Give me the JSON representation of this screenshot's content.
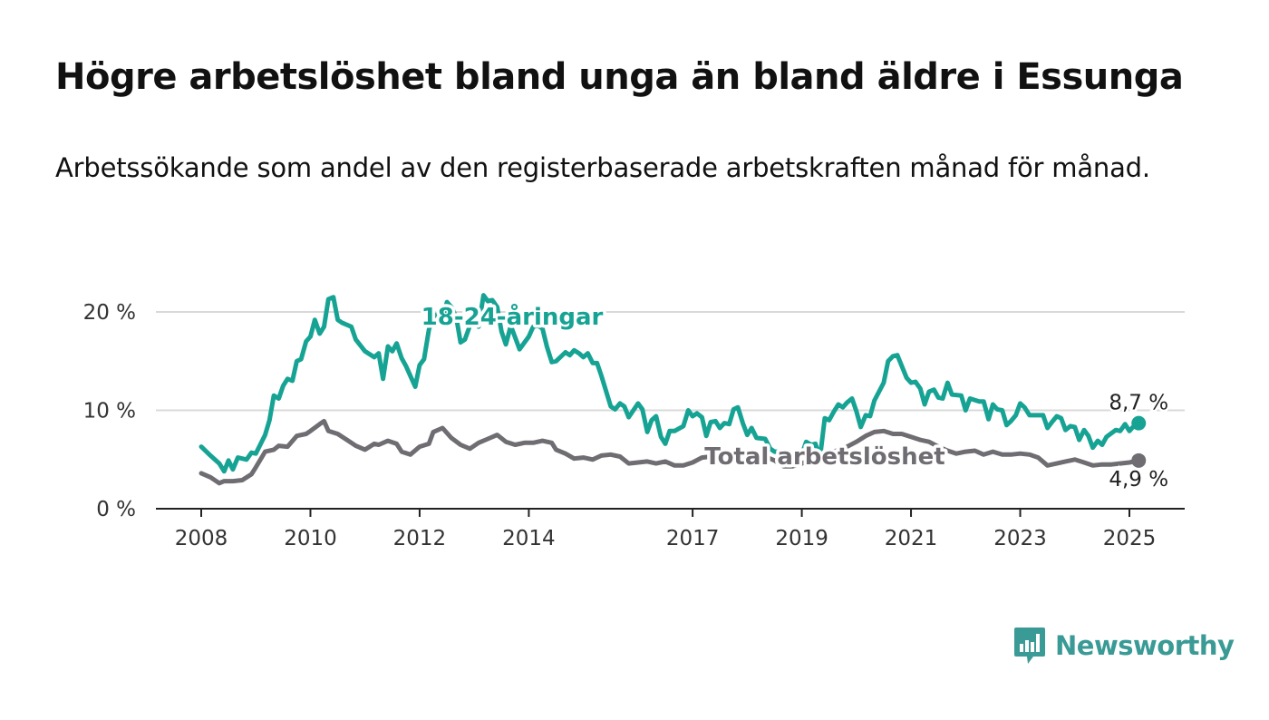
{
  "title": "Högre arbetslöshet bland unga än bland äldre i Essunga",
  "subtitle": "Arbetssökande som andel av den registerbaserade arbetskraften månad för månad.",
  "brand": {
    "name": "Newsworthy",
    "color": "#3a9a95",
    "icon": "bar-chart-speech-bubble-icon"
  },
  "chart_data": {
    "type": "line",
    "x_range": [
      "2008-01",
      "2025-03"
    ],
    "xticks": [
      {
        "value": 2008,
        "label": "2008"
      },
      {
        "value": 2010,
        "label": "2010"
      },
      {
        "value": 2012,
        "label": "2012"
      },
      {
        "value": 2014,
        "label": "2014"
      },
      {
        "value": 2017,
        "label": "2017"
      },
      {
        "value": 2019,
        "label": "2019"
      },
      {
        "value": 2021,
        "label": "2021"
      },
      {
        "value": 2023,
        "label": "2023"
      },
      {
        "value": 2025,
        "label": "2025"
      }
    ],
    "yticks": [
      {
        "value": 0,
        "label": "0 %"
      },
      {
        "value": 10,
        "label": "10 %"
      },
      {
        "value": 20,
        "label": "20 %"
      }
    ],
    "ylim": [
      0,
      22
    ],
    "grid": true,
    "series": [
      {
        "name": "18-24-åringar",
        "color": "#16a394",
        "end_label": "8,7 %",
        "points": [
          [
            2008.0,
            6.3
          ],
          [
            2008.17,
            5.4
          ],
          [
            2008.33,
            4.6
          ],
          [
            2008.42,
            3.8
          ],
          [
            2008.5,
            4.9
          ],
          [
            2008.58,
            4.0
          ],
          [
            2008.67,
            5.2
          ],
          [
            2008.83,
            5.0
          ],
          [
            2008.92,
            5.7
          ],
          [
            2009.0,
            5.6
          ],
          [
            2009.17,
            7.5
          ],
          [
            2009.25,
            9.0
          ],
          [
            2009.33,
            11.5
          ],
          [
            2009.42,
            11.2
          ],
          [
            2009.5,
            12.5
          ],
          [
            2009.58,
            13.2
          ],
          [
            2009.67,
            13.0
          ],
          [
            2009.75,
            15.0
          ],
          [
            2009.83,
            15.2
          ],
          [
            2009.92,
            17.0
          ],
          [
            2010.0,
            17.5
          ],
          [
            2010.08,
            19.2
          ],
          [
            2010.17,
            17.8
          ],
          [
            2010.25,
            18.5
          ],
          [
            2010.33,
            21.3
          ],
          [
            2010.42,
            21.5
          ],
          [
            2010.5,
            19.2
          ],
          [
            2010.58,
            18.9
          ],
          [
            2010.75,
            18.5
          ],
          [
            2010.83,
            17.2
          ],
          [
            2011.0,
            16.0
          ],
          [
            2011.17,
            15.4
          ],
          [
            2011.25,
            15.8
          ],
          [
            2011.33,
            13.2
          ],
          [
            2011.42,
            16.5
          ],
          [
            2011.5,
            16.0
          ],
          [
            2011.58,
            16.8
          ],
          [
            2011.67,
            15.3
          ],
          [
            2011.75,
            14.5
          ],
          [
            2011.92,
            12.4
          ],
          [
            2012.0,
            14.6
          ],
          [
            2012.08,
            15.2
          ],
          [
            2012.17,
            18.2
          ],
          [
            2012.25,
            19.5
          ],
          [
            2012.33,
            19.8
          ],
          [
            2012.42,
            19.3
          ],
          [
            2012.5,
            21.0
          ],
          [
            2012.58,
            20.5
          ],
          [
            2012.67,
            19.5
          ],
          [
            2012.75,
            16.9
          ],
          [
            2012.83,
            17.2
          ],
          [
            2012.92,
            18.6
          ],
          [
            2013.0,
            19.2
          ],
          [
            2013.08,
            18.5
          ],
          [
            2013.17,
            21.7
          ],
          [
            2013.25,
            21.1
          ],
          [
            2013.33,
            21.2
          ],
          [
            2013.42,
            20.5
          ],
          [
            2013.5,
            18.0
          ],
          [
            2013.58,
            16.7
          ],
          [
            2013.67,
            18.6
          ],
          [
            2013.75,
            17.4
          ],
          [
            2013.83,
            16.2
          ],
          [
            2014.0,
            17.5
          ],
          [
            2014.08,
            18.5
          ],
          [
            2014.17,
            18.6
          ],
          [
            2014.25,
            18.3
          ],
          [
            2014.33,
            16.5
          ],
          [
            2014.42,
            14.9
          ],
          [
            2014.5,
            15.0
          ],
          [
            2014.67,
            15.9
          ],
          [
            2014.75,
            15.6
          ],
          [
            2014.83,
            16.1
          ],
          [
            2014.92,
            15.8
          ],
          [
            2015.0,
            15.4
          ],
          [
            2015.08,
            15.8
          ],
          [
            2015.17,
            14.8
          ],
          [
            2015.25,
            14.8
          ],
          [
            2015.33,
            13.5
          ],
          [
            2015.5,
            10.4
          ],
          [
            2015.58,
            10.1
          ],
          [
            2015.67,
            10.7
          ],
          [
            2015.75,
            10.4
          ],
          [
            2015.83,
            9.3
          ],
          [
            2016.0,
            10.7
          ],
          [
            2016.08,
            10.1
          ],
          [
            2016.17,
            7.8
          ],
          [
            2016.25,
            9.0
          ],
          [
            2016.33,
            9.4
          ],
          [
            2016.42,
            7.3
          ],
          [
            2016.5,
            6.6
          ],
          [
            2016.58,
            7.9
          ],
          [
            2016.67,
            7.9
          ],
          [
            2016.83,
            8.4
          ],
          [
            2016.92,
            10.0
          ],
          [
            2017.0,
            9.4
          ],
          [
            2017.08,
            9.7
          ],
          [
            2017.17,
            9.3
          ],
          [
            2017.25,
            7.4
          ],
          [
            2017.33,
            8.8
          ],
          [
            2017.42,
            8.9
          ],
          [
            2017.5,
            8.2
          ],
          [
            2017.58,
            8.7
          ],
          [
            2017.67,
            8.6
          ],
          [
            2017.75,
            10.1
          ],
          [
            2017.83,
            10.3
          ],
          [
            2017.92,
            8.7
          ],
          [
            2018.0,
            7.5
          ],
          [
            2018.08,
            8.2
          ],
          [
            2018.17,
            7.2
          ],
          [
            2018.33,
            7.1
          ],
          [
            2018.42,
            6.1
          ],
          [
            2018.5,
            5.8
          ],
          [
            2018.58,
            5.8
          ],
          [
            2018.67,
            4.5
          ],
          [
            2018.75,
            4.5
          ],
          [
            2018.83,
            4.8
          ],
          [
            2019.0,
            5.5
          ],
          [
            2019.08,
            6.8
          ],
          [
            2019.17,
            6.5
          ],
          [
            2019.25,
            6.6
          ],
          [
            2019.33,
            5.1
          ],
          [
            2019.42,
            9.2
          ],
          [
            2019.5,
            9.0
          ],
          [
            2019.58,
            9.8
          ],
          [
            2019.67,
            10.6
          ],
          [
            2019.75,
            10.3
          ],
          [
            2019.83,
            10.8
          ],
          [
            2019.92,
            11.2
          ],
          [
            2020.0,
            9.9
          ],
          [
            2020.08,
            8.3
          ],
          [
            2020.17,
            9.5
          ],
          [
            2020.25,
            9.4
          ],
          [
            2020.33,
            11.0
          ],
          [
            2020.5,
            12.8
          ],
          [
            2020.58,
            15.0
          ],
          [
            2020.67,
            15.5
          ],
          [
            2020.75,
            15.6
          ],
          [
            2020.92,
            13.3
          ],
          [
            2021.0,
            12.8
          ],
          [
            2021.08,
            12.9
          ],
          [
            2021.17,
            12.2
          ],
          [
            2021.25,
            10.6
          ],
          [
            2021.33,
            11.9
          ],
          [
            2021.42,
            12.1
          ],
          [
            2021.5,
            11.3
          ],
          [
            2021.58,
            11.2
          ],
          [
            2021.67,
            12.8
          ],
          [
            2021.75,
            11.6
          ],
          [
            2021.92,
            11.5
          ],
          [
            2022.0,
            10.0
          ],
          [
            2022.08,
            11.2
          ],
          [
            2022.25,
            10.9
          ],
          [
            2022.33,
            10.9
          ],
          [
            2022.42,
            9.1
          ],
          [
            2022.5,
            10.6
          ],
          [
            2022.58,
            10.1
          ],
          [
            2022.67,
            10.0
          ],
          [
            2022.75,
            8.5
          ],
          [
            2022.83,
            8.9
          ],
          [
            2022.92,
            9.5
          ],
          [
            2023.0,
            10.7
          ],
          [
            2023.08,
            10.3
          ],
          [
            2023.17,
            9.5
          ],
          [
            2023.25,
            9.5
          ],
          [
            2023.42,
            9.5
          ],
          [
            2023.5,
            8.2
          ],
          [
            2023.58,
            8.8
          ],
          [
            2023.67,
            9.4
          ],
          [
            2023.75,
            9.2
          ],
          [
            2023.83,
            8.0
          ],
          [
            2023.92,
            8.4
          ],
          [
            2024.0,
            8.3
          ],
          [
            2024.08,
            7.0
          ],
          [
            2024.17,
            8.0
          ],
          [
            2024.25,
            7.4
          ],
          [
            2024.33,
            6.2
          ],
          [
            2024.42,
            6.9
          ],
          [
            2024.5,
            6.5
          ],
          [
            2024.58,
            7.3
          ],
          [
            2024.75,
            8.0
          ],
          [
            2024.83,
            7.9
          ],
          [
            2024.92,
            8.6
          ],
          [
            2025.0,
            7.9
          ],
          [
            2025.08,
            8.4
          ],
          [
            2025.17,
            8.7
          ]
        ]
      },
      {
        "name": "Total arbetslöshet",
        "color": "#6f6d72",
        "end_label": "4,9 %",
        "points": [
          [
            2008.0,
            3.6
          ],
          [
            2008.17,
            3.2
          ],
          [
            2008.33,
            2.6
          ],
          [
            2008.42,
            2.8
          ],
          [
            2008.58,
            2.8
          ],
          [
            2008.75,
            2.9
          ],
          [
            2008.92,
            3.5
          ],
          [
            2009.0,
            4.2
          ],
          [
            2009.17,
            5.8
          ],
          [
            2009.33,
            6.0
          ],
          [
            2009.42,
            6.4
          ],
          [
            2009.58,
            6.3
          ],
          [
            2009.75,
            7.4
          ],
          [
            2009.92,
            7.6
          ],
          [
            2010.0,
            7.9
          ],
          [
            2010.17,
            8.6
          ],
          [
            2010.25,
            8.9
          ],
          [
            2010.33,
            7.9
          ],
          [
            2010.5,
            7.6
          ],
          [
            2010.67,
            7.0
          ],
          [
            2010.83,
            6.4
          ],
          [
            2011.0,
            6.0
          ],
          [
            2011.17,
            6.6
          ],
          [
            2011.25,
            6.5
          ],
          [
            2011.42,
            6.9
          ],
          [
            2011.58,
            6.6
          ],
          [
            2011.67,
            5.8
          ],
          [
            2011.83,
            5.5
          ],
          [
            2012.0,
            6.3
          ],
          [
            2012.17,
            6.6
          ],
          [
            2012.25,
            7.8
          ],
          [
            2012.42,
            8.2
          ],
          [
            2012.58,
            7.2
          ],
          [
            2012.75,
            6.5
          ],
          [
            2012.92,
            6.1
          ],
          [
            2013.08,
            6.7
          ],
          [
            2013.25,
            7.1
          ],
          [
            2013.42,
            7.5
          ],
          [
            2013.58,
            6.8
          ],
          [
            2013.75,
            6.5
          ],
          [
            2013.92,
            6.7
          ],
          [
            2014.08,
            6.7
          ],
          [
            2014.25,
            6.9
          ],
          [
            2014.42,
            6.7
          ],
          [
            2014.5,
            6.0
          ],
          [
            2014.67,
            5.6
          ],
          [
            2014.83,
            5.1
          ],
          [
            2015.0,
            5.2
          ],
          [
            2015.17,
            5.0
          ],
          [
            2015.33,
            5.4
          ],
          [
            2015.5,
            5.5
          ],
          [
            2015.67,
            5.3
          ],
          [
            2015.83,
            4.6
          ],
          [
            2016.0,
            4.7
          ],
          [
            2016.17,
            4.8
          ],
          [
            2016.33,
            4.6
          ],
          [
            2016.5,
            4.8
          ],
          [
            2016.67,
            4.4
          ],
          [
            2016.83,
            4.4
          ],
          [
            2017.0,
            4.7
          ],
          [
            2017.17,
            5.2
          ],
          [
            2017.33,
            5.3
          ],
          [
            2017.5,
            5.0
          ],
          [
            2017.67,
            5.0
          ],
          [
            2017.83,
            5.2
          ],
          [
            2018.0,
            5.3
          ],
          [
            2018.17,
            5.1
          ],
          [
            2018.33,
            5.3
          ],
          [
            2018.5,
            4.9
          ],
          [
            2018.67,
            4.3
          ],
          [
            2018.83,
            4.3
          ],
          [
            2019.0,
            4.6
          ],
          [
            2019.17,
            5.0
          ],
          [
            2019.33,
            5.4
          ],
          [
            2019.5,
            5.8
          ],
          [
            2019.67,
            5.9
          ],
          [
            2019.83,
            6.3
          ],
          [
            2020.0,
            6.8
          ],
          [
            2020.17,
            7.4
          ],
          [
            2020.33,
            7.8
          ],
          [
            2020.5,
            7.9
          ],
          [
            2020.67,
            7.6
          ],
          [
            2020.83,
            7.6
          ],
          [
            2021.0,
            7.3
          ],
          [
            2021.17,
            7.0
          ],
          [
            2021.33,
            6.8
          ],
          [
            2021.5,
            6.3
          ],
          [
            2021.67,
            5.9
          ],
          [
            2021.83,
            5.6
          ],
          [
            2022.0,
            5.8
          ],
          [
            2022.17,
            5.9
          ],
          [
            2022.33,
            5.5
          ],
          [
            2022.5,
            5.8
          ],
          [
            2022.67,
            5.5
          ],
          [
            2022.83,
            5.5
          ],
          [
            2023.0,
            5.6
          ],
          [
            2023.17,
            5.5
          ],
          [
            2023.33,
            5.2
          ],
          [
            2023.5,
            4.4
          ],
          [
            2023.67,
            4.6
          ],
          [
            2023.83,
            4.8
          ],
          [
            2024.0,
            5.0
          ],
          [
            2024.17,
            4.7
          ],
          [
            2024.33,
            4.4
          ],
          [
            2024.5,
            4.5
          ],
          [
            2024.67,
            4.5
          ],
          [
            2024.83,
            4.6
          ],
          [
            2025.0,
            4.7
          ],
          [
            2025.17,
            4.9
          ]
        ]
      }
    ]
  }
}
